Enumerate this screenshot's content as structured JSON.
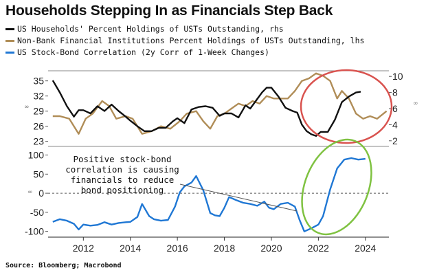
{
  "title": "Households Stepping In as Financials Step Back",
  "source": "Source: Bloomberg; Macrobond",
  "chart_data": [
    {
      "type": "line",
      "panel": "top",
      "series": [
        {
          "name": "US Households' Percent Holdings of USTs Outstanding, rhs",
          "axis": "right",
          "color": "#111111",
          "x": [
            2010.7,
            2011.0,
            2011.3,
            2011.6,
            2011.8,
            2012.0,
            2012.3,
            2012.6,
            2012.9,
            2013.2,
            2013.5,
            2013.8,
            2014.0,
            2014.3,
            2014.6,
            2014.9,
            2015.2,
            2015.5,
            2015.8,
            2016.0,
            2016.3,
            2016.6,
            2016.9,
            2017.2,
            2017.5,
            2017.8,
            2018.0,
            2018.3,
            2018.6,
            2018.9,
            2019.1,
            2019.4,
            2019.6,
            2019.8,
            2020.0,
            2020.3,
            2020.6,
            2020.9,
            2021.1,
            2021.3,
            2021.5,
            2021.7,
            2021.9,
            2022.1,
            2022.4,
            2022.7,
            2023.0,
            2023.3,
            2023.6,
            2023.8
          ],
          "values": [
            9.5,
            8.0,
            6.3,
            5.0,
            5.8,
            5.8,
            5.4,
            6.3,
            5.7,
            6.5,
            5.7,
            5.0,
            4.5,
            3.8,
            3.2,
            3.2,
            3.6,
            3.6,
            4.4,
            4.8,
            4.2,
            5.9,
            6.2,
            6.3,
            6.1,
            5.1,
            5.4,
            5.4,
            4.9,
            6.4,
            6.0,
            7.2,
            8.0,
            8.6,
            8.6,
            7.5,
            6.1,
            5.7,
            5.5,
            4.0,
            3.2,
            2.8,
            2.6,
            3.1,
            3.1,
            4.6,
            6.8,
            7.5,
            8.0,
            8.1
          ]
        },
        {
          "name": "Non-Bank Financial Institutions Percent Holdings of USTs Outstanding, lhs",
          "axis": "left",
          "color": "#b08d57",
          "x": [
            2010.7,
            2011.0,
            2011.4,
            2011.8,
            2012.1,
            2012.4,
            2012.8,
            2013.1,
            2013.4,
            2013.8,
            2014.1,
            2014.5,
            2014.9,
            2015.3,
            2015.7,
            2016.1,
            2016.4,
            2016.8,
            2017.1,
            2017.4,
            2017.7,
            2018.0,
            2018.3,
            2018.6,
            2018.9,
            2019.2,
            2019.5,
            2019.8,
            2020.1,
            2020.4,
            2020.7,
            2021.0,
            2021.3,
            2021.6,
            2021.9,
            2022.2,
            2022.5,
            2022.8,
            2023.0,
            2023.3,
            2023.6,
            2023.9,
            2024.2,
            2024.5,
            2024.9
          ],
          "values": [
            28,
            28,
            27.5,
            24.5,
            27.5,
            28.5,
            31.0,
            30.0,
            27.5,
            28,
            27.5,
            24.5,
            25,
            26,
            25.5,
            27,
            28.5,
            29,
            27,
            25.5,
            28,
            28.5,
            29.5,
            30.5,
            30,
            31,
            30.5,
            32,
            31.5,
            31.5,
            31.5,
            33,
            35,
            35.5,
            36.5,
            36,
            35,
            31.5,
            33,
            31.5,
            28.5,
            27.5,
            28,
            27.5,
            29
          ]
        }
      ],
      "left_axis": {
        "ticks": [
          23,
          26,
          29,
          32,
          35
        ],
        "range": [
          22,
          37
        ]
      },
      "right_axis": {
        "ticks": [
          2,
          4,
          6,
          8,
          10
        ],
        "range": [
          1.3,
          10.7
        ]
      },
      "annotations": [
        {
          "type": "ellipse",
          "color": "#d9534f",
          "covers_x": [
            2021.3,
            2024.8
          ]
        }
      ]
    },
    {
      "type": "line",
      "panel": "bottom",
      "series": [
        {
          "name": "US Stock-Bond Correlation (2y Corr of 1-Week Changes)",
          "color": "#1f77d4",
          "x": [
            2010.7,
            2011.0,
            2011.3,
            2011.6,
            2011.8,
            2012.0,
            2012.3,
            2012.6,
            2012.9,
            2013.2,
            2013.5,
            2013.8,
            2014.0,
            2014.3,
            2014.5,
            2014.8,
            2015.0,
            2015.3,
            2015.6,
            2015.9,
            2016.1,
            2016.3,
            2016.6,
            2016.8,
            2017.1,
            2017.4,
            2017.6,
            2017.8,
            2018.0,
            2018.2,
            2018.5,
            2018.8,
            2019.1,
            2019.4,
            2019.7,
            2019.9,
            2020.1,
            2020.4,
            2020.7,
            2021.0,
            2021.2,
            2021.4,
            2021.7,
            2022.0,
            2022.2,
            2022.5,
            2022.8,
            2023.1,
            2023.4,
            2023.7,
            2024.0
          ],
          "values": [
            -75,
            -68,
            -72,
            -80,
            -95,
            -82,
            -85,
            -83,
            -76,
            -82,
            -78,
            -76,
            -75,
            -62,
            -28,
            -60,
            -68,
            -72,
            -70,
            -35,
            2,
            18,
            28,
            45,
            8,
            -52,
            -58,
            -60,
            -38,
            -10,
            -18,
            -25,
            -28,
            -33,
            -22,
            -38,
            -42,
            -28,
            -25,
            -35,
            -70,
            -100,
            -92,
            -82,
            -60,
            10,
            65,
            88,
            92,
            88,
            90
          ]
        }
      ],
      "y_axis": {
        "ticks": [
          -100,
          -50,
          0,
          50,
          100
        ],
        "range": [
          -115,
          110
        ]
      },
      "zero_line": "dashed",
      "annotations": [
        {
          "type": "text",
          "lines": [
            "Positive stock-bond",
            "correlation is causing",
            "financials to reduce",
            "bond positioning"
          ]
        },
        {
          "type": "ellipse",
          "color": "#7fc241",
          "covers_x": [
            2021.3,
            2024.3
          ]
        }
      ]
    }
  ],
  "x_axis": {
    "ticks": [
      2012,
      2014,
      2016,
      2018,
      2020,
      2022,
      2024
    ],
    "range": [
      2010.5,
      2025.0
    ]
  }
}
